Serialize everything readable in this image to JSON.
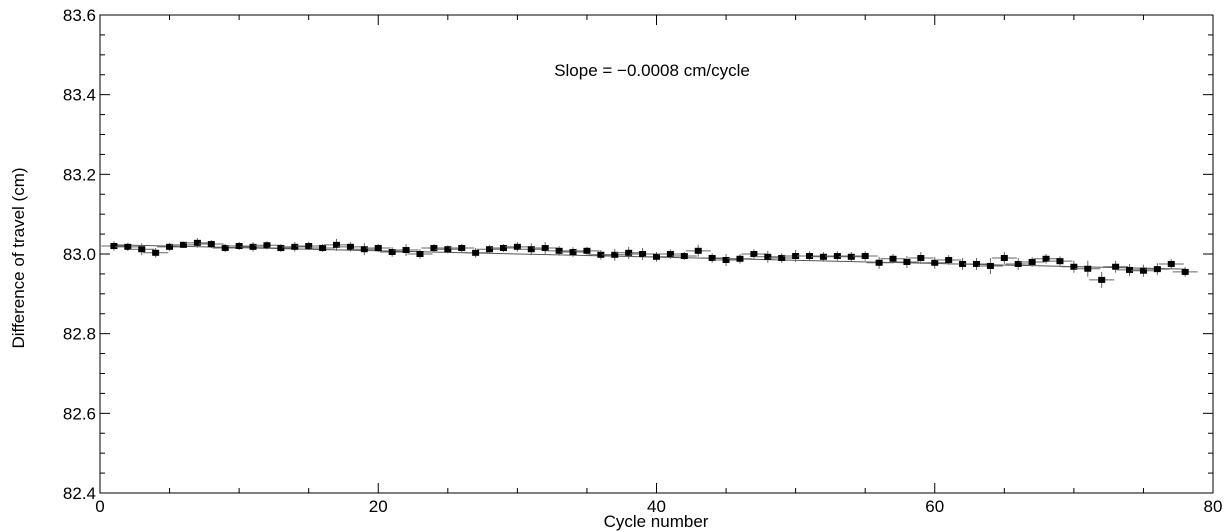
{
  "chart_data": {
    "type": "scatter",
    "title": "",
    "xlabel": "Cycle number",
    "ylabel": "Difference of travel  (cm)",
    "xlim": [
      0,
      80
    ],
    "ylim": [
      82.4,
      83.6
    ],
    "xticks": [
      0,
      20,
      40,
      60,
      80
    ],
    "yticks": [
      82.4,
      82.6,
      82.8,
      83.0,
      83.2,
      83.4,
      83.6
    ],
    "xtick_labels": [
      "0",
      "20",
      "40",
      "60",
      "80"
    ],
    "ytick_labels": [
      "82.4",
      "82.6",
      "82.8",
      "83.0",
      "83.2",
      "83.4",
      "83.6"
    ],
    "grid": false,
    "annotation": "Slope = −0.0008 cm/cycle",
    "fit_line": {
      "x": [
        1,
        78
      ],
      "y": [
        83.023,
        82.962
      ]
    },
    "series": [
      {
        "x": [
          1,
          2,
          3,
          4,
          5,
          6,
          7,
          8,
          9,
          10,
          11,
          12,
          13,
          14,
          15,
          16,
          17,
          18,
          19,
          20,
          21,
          22,
          23,
          24,
          25,
          26,
          27,
          28,
          29,
          30,
          31,
          32,
          33,
          34,
          35,
          36,
          37,
          38,
          39,
          40,
          41,
          42,
          43,
          44,
          45,
          46,
          47,
          48,
          49,
          50,
          51,
          52,
          53,
          54,
          55,
          56,
          57,
          58,
          59,
          60,
          61,
          62,
          63,
          64,
          65,
          66,
          67,
          68,
          69,
          70,
          71,
          72,
          73,
          74,
          75,
          76,
          77,
          78
        ],
        "y": [
          83.02,
          83.018,
          83.012,
          83.003,
          83.018,
          83.023,
          83.028,
          83.025,
          83.015,
          83.02,
          83.018,
          83.022,
          83.015,
          83.018,
          83.02,
          83.015,
          83.023,
          83.018,
          83.012,
          83.015,
          83.005,
          83.01,
          83.0,
          83.015,
          83.012,
          83.015,
          83.003,
          83.012,
          83.015,
          83.018,
          83.012,
          83.015,
          83.008,
          83.005,
          83.008,
          82.998,
          82.998,
          83.003,
          83.0,
          82.993,
          83.0,
          82.995,
          83.008,
          82.99,
          82.985,
          82.988,
          83.0,
          82.993,
          82.99,
          82.995,
          82.995,
          82.993,
          82.995,
          82.993,
          82.995,
          82.978,
          82.988,
          82.98,
          82.99,
          82.978,
          82.985,
          82.975,
          82.975,
          82.97,
          82.99,
          82.975,
          82.98,
          82.988,
          82.982,
          82.968,
          82.963,
          82.935,
          82.968,
          82.96,
          82.958,
          82.962,
          82.975,
          82.955
        ],
        "yerr": [
          0.012,
          0.01,
          0.015,
          0.012,
          0.01,
          0.008,
          0.012,
          0.01,
          0.01,
          0.01,
          0.012,
          0.01,
          0.01,
          0.012,
          0.01,
          0.01,
          0.015,
          0.012,
          0.015,
          0.01,
          0.012,
          0.015,
          0.012,
          0.01,
          0.01,
          0.01,
          0.012,
          0.01,
          0.01,
          0.012,
          0.015,
          0.015,
          0.012,
          0.012,
          0.01,
          0.012,
          0.015,
          0.015,
          0.015,
          0.012,
          0.012,
          0.01,
          0.015,
          0.012,
          0.015,
          0.012,
          0.012,
          0.015,
          0.012,
          0.015,
          0.012,
          0.012,
          0.012,
          0.012,
          0.012,
          0.015,
          0.012,
          0.015,
          0.015,
          0.015,
          0.012,
          0.015,
          0.015,
          0.02,
          0.015,
          0.015,
          0.012,
          0.012,
          0.012,
          0.015,
          0.02,
          0.02,
          0.015,
          0.015,
          0.015,
          0.015,
          0.012,
          0.012
        ],
        "xerr": 0.9
      }
    ]
  }
}
